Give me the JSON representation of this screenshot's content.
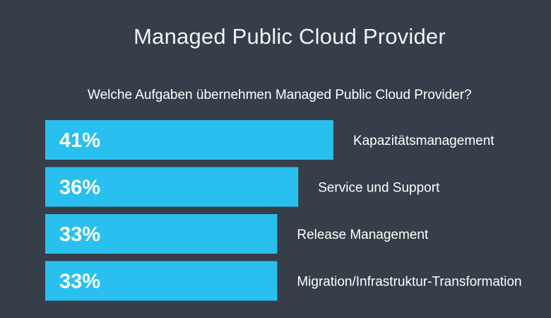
{
  "title": "Managed Public Cloud Provider",
  "subtitle": "Welche Aufgaben übernehmen Managed Public Cloud Provider?",
  "colors": {
    "background": "#363e49",
    "bar": "#29c0ef",
    "text": "#ffffff"
  },
  "chart_data": {
    "type": "bar",
    "orientation": "horizontal",
    "title": "Managed Public Cloud Provider",
    "subtitle": "Welche Aufgaben übernehmen Managed Public Cloud Provider?",
    "categories": [
      "Kapazitätsmanagement",
      "Service und Support",
      "Release Management",
      "Migration/Infrastruktur-Transformation"
    ],
    "values": [
      41,
      36,
      33,
      33
    ],
    "value_labels": [
      "41%",
      "36%",
      "33%",
      "33%"
    ],
    "unit": "%",
    "xlabel": "",
    "ylabel": "",
    "grid": false,
    "legend": "none"
  }
}
